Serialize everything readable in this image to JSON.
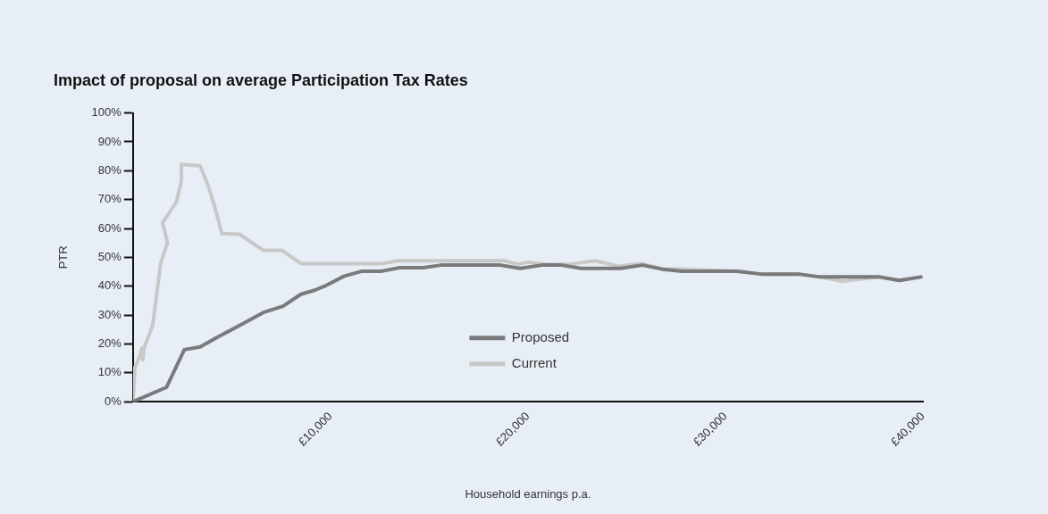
{
  "chart_data": {
    "type": "line",
    "title": "Impact of proposal on average Participation Tax Rates",
    "xlabel": "Household earnings p.a.",
    "ylabel": "PTR",
    "xlim": [
      0,
      40000
    ],
    "ylim": [
      0,
      100
    ],
    "xticks": [
      {
        "value": 0,
        "label": null
      },
      {
        "value": 10000,
        "label": "£10,000"
      },
      {
        "value": 20000,
        "label": "£20,000"
      },
      {
        "value": 30000,
        "label": "£30,000"
      },
      {
        "value": 40000,
        "label": "£40,000"
      }
    ],
    "yticks": [
      {
        "value": 0,
        "label": "0%"
      },
      {
        "value": 10,
        "label": "10%"
      },
      {
        "value": 20,
        "label": "20%"
      },
      {
        "value": 30,
        "label": "30%"
      },
      {
        "value": 40,
        "label": "40%"
      },
      {
        "value": 50,
        "label": "50%"
      },
      {
        "value": 60,
        "label": "60%"
      },
      {
        "value": 70,
        "label": "70%"
      },
      {
        "value": 80,
        "label": "80%"
      },
      {
        "value": 90,
        "label": "90%"
      },
      {
        "value": 100,
        "label": "100%"
      }
    ],
    "grid": false,
    "legend": "bottom",
    "marker": "none",
    "line_style": "solid",
    "series": [
      {
        "name": "Proposed",
        "color": "#7a7a7d",
        "x": [
          0,
          1700,
          2600,
          3400,
          4350,
          5500,
          6600,
          7600,
          8500,
          9200,
          9700,
          10700,
          11600,
          12600,
          13500,
          14700,
          15600,
          18600,
          19600,
          20700,
          21700,
          22700,
          24700,
          25800,
          26800,
          27800,
          30600,
          31800,
          33700,
          34800,
          37800,
          38800,
          39900
        ],
        "values": [
          0,
          5,
          18,
          19,
          22.6,
          26.8,
          30.9,
          33.1,
          37.2,
          38.6,
          40,
          43.5,
          45.2,
          45.2,
          46.4,
          46.4,
          47.3,
          47.3,
          46.2,
          47.3,
          47.3,
          46.2,
          46.2,
          47.3,
          45.9,
          45.2,
          45.2,
          44.2,
          44.2,
          43.2,
          43.2,
          42,
          43.2
        ]
      },
      {
        "name": "Current",
        "color": "#c8c8c8",
        "x": [
          0,
          100,
          300,
          450,
          500,
          550,
          1000,
          1400,
          1750,
          1500,
          2200,
          2450,
          2450,
          3400,
          3800,
          4150,
          4500,
          5400,
          6600,
          7550,
          8500,
          12600,
          13400,
          18800,
          19500,
          20000,
          20900,
          22100,
          23400,
          24600,
          25700,
          26800,
          27800,
          30600,
          31800,
          33700,
          34800,
          35900,
          37800,
          38800,
          39900
        ],
        "values": [
          0,
          12,
          15,
          18.6,
          14.5,
          18.4,
          26.6,
          47.8,
          55.1,
          62,
          69.2,
          76.4,
          82.2,
          81.7,
          75,
          67.3,
          58.2,
          58,
          52.4,
          52.4,
          47.8,
          47.8,
          48.8,
          48.8,
          47.6,
          48.3,
          47.6,
          47.6,
          48.8,
          46.9,
          47.9,
          46,
          45.9,
          45.2,
          44.2,
          44.2,
          43.2,
          41.7,
          43.2,
          42,
          43.2
        ]
      }
    ]
  }
}
